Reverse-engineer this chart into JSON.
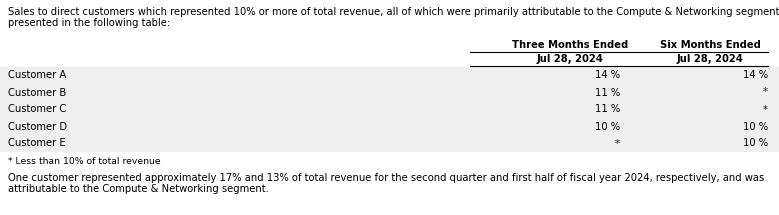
{
  "intro_text_line1": "Sales to direct customers which represented 10% or more of total revenue, all of which were primarily attributable to the Compute & Networking segment, are",
  "intro_text_line2": "presented in the following table:",
  "col_header_1_line1": "Three Months Ended",
  "col_header_2_line1": "Six Months Ended",
  "col_header_1_line2": "Jul 28, 2024",
  "col_header_2_line2": "Jul 28, 2024",
  "rows": [
    {
      "label": "Customer A",
      "col1": "14 %",
      "col2": "14 %"
    },
    {
      "label": "Customer B",
      "col1": "11 %",
      "col2": "*"
    },
    {
      "label": "Customer C",
      "col1": "11 %",
      "col2": "*"
    },
    {
      "label": "Customer D",
      "col1": "10 %",
      "col2": "10 %"
    },
    {
      "label": "Customer E",
      "col1": "*",
      "col2": "10 %"
    }
  ],
  "footnote": "* Less than 10% of total revenue",
  "bottom_text_line1": "One customer represented approximately 17% and 13% of total revenue for the second quarter and first half of fiscal year 2024, respectively, and was",
  "bottom_text_line2": "attributable to the Compute & Networking segment.",
  "bg_color": "#ffffff",
  "row_bg_color": "#efefef",
  "text_color": "#000000",
  "font_size": 7.2,
  "header_font_size": 7.2
}
